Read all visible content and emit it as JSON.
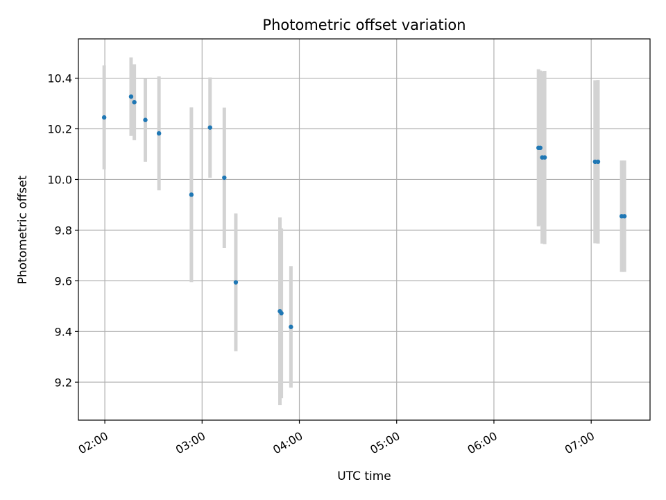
{
  "chart_data": {
    "type": "scatter",
    "title": "Photometric offset variation",
    "xlabel": "UTC time",
    "ylabel": "Photometric offset",
    "x_unit": "minutes",
    "xlim": [
      103.7,
      456.3
    ],
    "ylim": [
      9.05,
      10.555
    ],
    "x_ticks": [
      {
        "value": 120,
        "label": "02:00"
      },
      {
        "value": 180,
        "label": "03:00"
      },
      {
        "value": 240,
        "label": "04:00"
      },
      {
        "value": 300,
        "label": "05:00"
      },
      {
        "value": 360,
        "label": "06:00"
      },
      {
        "value": 420,
        "label": "07:00"
      }
    ],
    "y_ticks": [
      {
        "value": 9.2,
        "label": "9.2"
      },
      {
        "value": 9.4,
        "label": "9.4"
      },
      {
        "value": 9.6,
        "label": "9.6"
      },
      {
        "value": 9.8,
        "label": "9.8"
      },
      {
        "value": 10.0,
        "label": "10.0"
      },
      {
        "value": 10.2,
        "label": "10.2"
      },
      {
        "value": 10.4,
        "label": "10.4"
      }
    ],
    "grid": true,
    "point_color": "#1f77b4",
    "errorbar_color": "#d3d3d3",
    "points": [
      {
        "x": 119.6,
        "y": 10.245,
        "err": 0.205
      },
      {
        "x": 136.2,
        "y": 10.327,
        "err": 0.155
      },
      {
        "x": 138.2,
        "y": 10.305,
        "err": 0.15
      },
      {
        "x": 145.0,
        "y": 10.235,
        "err": 0.165
      },
      {
        "x": 153.4,
        "y": 10.182,
        "err": 0.225
      },
      {
        "x": 173.4,
        "y": 9.94,
        "err": 0.345
      },
      {
        "x": 184.9,
        "y": 10.205,
        "err": 0.198
      },
      {
        "x": 193.7,
        "y": 10.007,
        "err": 0.277
      },
      {
        "x": 200.8,
        "y": 9.594,
        "err": 0.272
      },
      {
        "x": 228.0,
        "y": 9.48,
        "err": 0.37
      },
      {
        "x": 228.9,
        "y": 9.472,
        "err": 0.335
      },
      {
        "x": 234.8,
        "y": 9.418,
        "err": 0.24
      },
      {
        "x": 387.5,
        "y": 10.125,
        "err": 0.31
      },
      {
        "x": 388.6,
        "y": 10.125,
        "err": 0.305
      },
      {
        "x": 389.8,
        "y": 10.087,
        "err": 0.34
      },
      {
        "x": 391.3,
        "y": 10.087,
        "err": 0.342
      },
      {
        "x": 422.4,
        "y": 10.07,
        "err": 0.322
      },
      {
        "x": 424.2,
        "y": 10.07,
        "err": 0.323
      },
      {
        "x": 438.8,
        "y": 9.855,
        "err": 0.22
      },
      {
        "x": 440.5,
        "y": 9.855,
        "err": 0.22
      }
    ]
  }
}
